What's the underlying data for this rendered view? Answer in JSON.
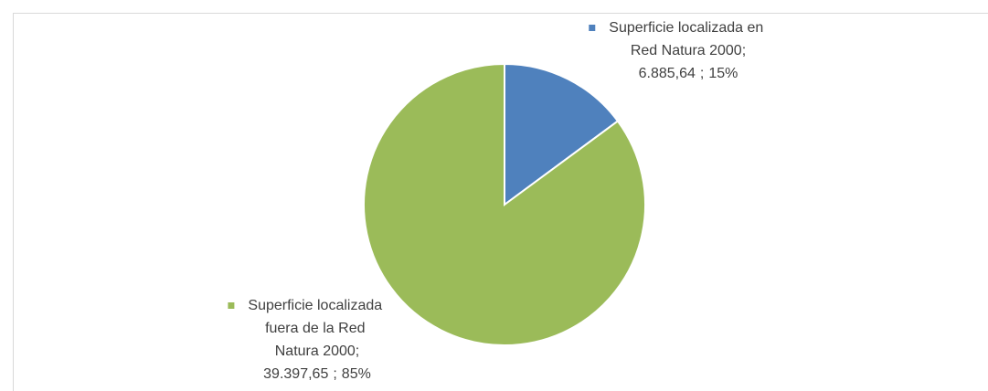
{
  "chart_data": {
    "type": "pie",
    "categories": [
      "Superficie localizada en Red Natura 2000",
      "Superficie localizada fuera de la Red Natura 2000"
    ],
    "values": [
      6885.64,
      39397.65
    ],
    "value_labels": [
      "6.885,64",
      "39.397,65"
    ],
    "percentages": [
      15,
      85
    ],
    "percentage_labels": [
      "15%",
      "85%"
    ],
    "separator": ";",
    "colors": [
      "#4f81bd",
      "#9bbb59"
    ]
  }
}
